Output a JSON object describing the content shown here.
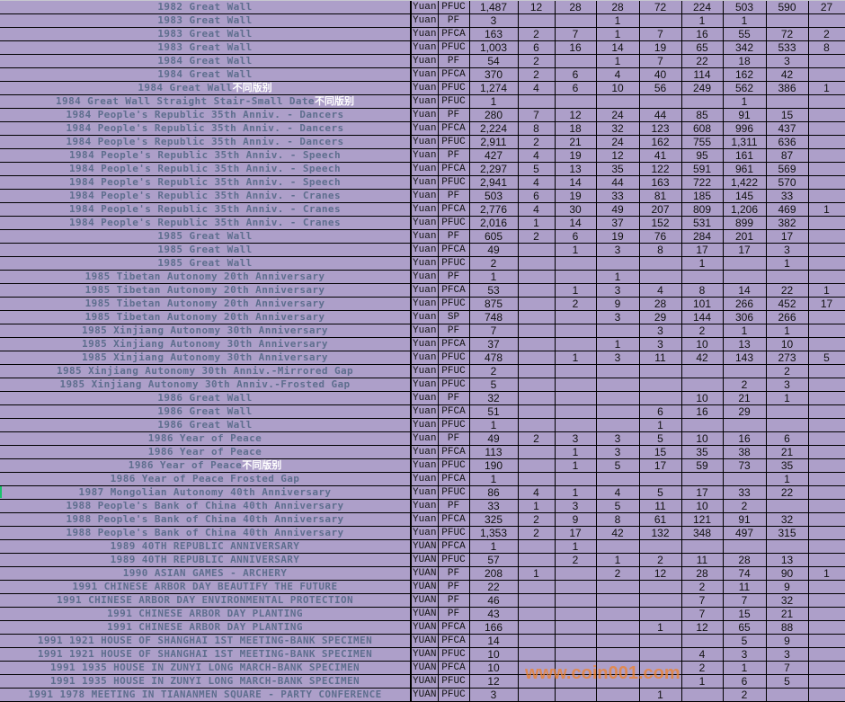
{
  "columns_count": 12,
  "rows": [
    {
      "desc": "1982 Great Wall",
      "note": "",
      "cur": "Yuan",
      "grade": "PFUC",
      "total": "1,487",
      "v": [
        "12",
        "28",
        "28",
        "72",
        "224",
        "503",
        "590",
        "27"
      ]
    },
    {
      "desc": "1983 Great Wall",
      "note": "",
      "cur": "Yuan",
      "grade": "PF",
      "total": "3",
      "v": [
        "",
        "",
        "1",
        "",
        "1",
        "1",
        "",
        ""
      ]
    },
    {
      "desc": "1983 Great Wall",
      "note": "",
      "cur": "Yuan",
      "grade": "PFCA",
      "total": "163",
      "v": [
        "2",
        "7",
        "1",
        "7",
        "16",
        "55",
        "72",
        "2"
      ]
    },
    {
      "desc": "1983 Great Wall",
      "note": "",
      "cur": "Yuan",
      "grade": "PFUC",
      "total": "1,003",
      "v": [
        "6",
        "16",
        "14",
        "19",
        "65",
        "342",
        "533",
        "8"
      ]
    },
    {
      "desc": "1984 Great Wall",
      "note": "",
      "cur": "Yuan",
      "grade": "PF",
      "total": "54",
      "v": [
        "2",
        "",
        "1",
        "7",
        "22",
        "18",
        "3",
        ""
      ]
    },
    {
      "desc": "1984 Great Wall",
      "note": "",
      "cur": "Yuan",
      "grade": "PFCA",
      "total": "370",
      "v": [
        "2",
        "6",
        "4",
        "40",
        "114",
        "162",
        "42",
        ""
      ]
    },
    {
      "desc": "1984 Great Wall",
      "note": "不同版别",
      "cur": "Yuan",
      "grade": "PFUC",
      "total": "1,274",
      "v": [
        "4",
        "6",
        "10",
        "56",
        "249",
        "562",
        "386",
        "1"
      ]
    },
    {
      "desc": "1984 Great Wall Straight Stair-Small Date",
      "note": "不同版别",
      "cur": "Yuan",
      "grade": "PFUC",
      "total": "1",
      "v": [
        "",
        "",
        "",
        "",
        "",
        "1",
        "",
        ""
      ]
    },
    {
      "desc": "1984 People's Republic 35th Anniv. - Dancers",
      "note": "",
      "cur": "Yuan",
      "grade": "PF",
      "total": "280",
      "v": [
        "7",
        "12",
        "24",
        "44",
        "85",
        "91",
        "15",
        ""
      ]
    },
    {
      "desc": "1984 People's Republic 35th Anniv. - Dancers",
      "note": "",
      "cur": "Yuan",
      "grade": "PFCA",
      "total": "2,224",
      "v": [
        "8",
        "18",
        "32",
        "123",
        "608",
        "996",
        "437",
        ""
      ]
    },
    {
      "desc": "1984 People's Republic 35th Anniv. - Dancers",
      "note": "",
      "cur": "Yuan",
      "grade": "PFUC",
      "total": "2,911",
      "v": [
        "2",
        "21",
        "24",
        "162",
        "755",
        "1,311",
        "636",
        ""
      ]
    },
    {
      "desc": "1984 People's Republic 35th Anniv. - Speech",
      "note": "",
      "cur": "Yuan",
      "grade": "PF",
      "total": "427",
      "v": [
        "4",
        "19",
        "12",
        "41",
        "95",
        "161",
        "87",
        ""
      ]
    },
    {
      "desc": "1984 People's Republic 35th Anniv. - Speech",
      "note": "",
      "cur": "Yuan",
      "grade": "PFCA",
      "total": "2,297",
      "v": [
        "5",
        "13",
        "35",
        "122",
        "591",
        "961",
        "569",
        ""
      ]
    },
    {
      "desc": "1984 People's Republic 35th Anniv. - Speech",
      "note": "",
      "cur": "Yuan",
      "grade": "PFUC",
      "total": "2,941",
      "v": [
        "4",
        "14",
        "44",
        "163",
        "722",
        "1,422",
        "570",
        ""
      ]
    },
    {
      "desc": "1984 People's Republic 35th Anniv. - Cranes",
      "note": "",
      "cur": "Yuan",
      "grade": "PF",
      "total": "503",
      "v": [
        "6",
        "19",
        "33",
        "81",
        "185",
        "145",
        "33",
        ""
      ]
    },
    {
      "desc": "1984 People's Republic 35th Anniv. - Cranes",
      "note": "",
      "cur": "Yuan",
      "grade": "PFCA",
      "total": "2,776",
      "v": [
        "4",
        "30",
        "49",
        "207",
        "809",
        "1,206",
        "469",
        "1"
      ]
    },
    {
      "desc": "1984 People's Republic 35th Anniv. - Cranes",
      "note": "",
      "cur": "Yuan",
      "grade": "PFUC",
      "total": "2,016",
      "v": [
        "1",
        "14",
        "37",
        "152",
        "531",
        "899",
        "382",
        ""
      ]
    },
    {
      "desc": "1985 Great Wall",
      "note": "",
      "cur": "Yuan",
      "grade": "PF",
      "total": "605",
      "v": [
        "2",
        "6",
        "19",
        "76",
        "284",
        "201",
        "17",
        ""
      ]
    },
    {
      "desc": "1985 Great Wall",
      "note": "",
      "cur": "Yuan",
      "grade": "PFCA",
      "total": "49",
      "v": [
        "",
        "1",
        "3",
        "8",
        "17",
        "17",
        "3",
        ""
      ]
    },
    {
      "desc": "1985 Great Wall",
      "note": "",
      "cur": "Yuan",
      "grade": "PFUC",
      "total": "2",
      "v": [
        "",
        "",
        "",
        "",
        "1",
        "",
        "1",
        ""
      ]
    },
    {
      "desc": "1985 Tibetan Autonomy 20th Anniversary",
      "note": "",
      "cur": "Yuan",
      "grade": "PF",
      "total": "1",
      "v": [
        "",
        "",
        "1",
        "",
        "",
        "",
        "",
        ""
      ]
    },
    {
      "desc": "1985 Tibetan Autonomy 20th Anniversary",
      "note": "",
      "cur": "Yuan",
      "grade": "PFCA",
      "total": "53",
      "v": [
        "",
        "1",
        "3",
        "4",
        "8",
        "14",
        "22",
        "1"
      ]
    },
    {
      "desc": "1985 Tibetan Autonomy 20th Anniversary",
      "note": "",
      "cur": "Yuan",
      "grade": "PFUC",
      "total": "875",
      "v": [
        "",
        "2",
        "9",
        "28",
        "101",
        "266",
        "452",
        "17"
      ]
    },
    {
      "desc": "1985 Tibetan Autonomy 20th Anniversary",
      "note": "",
      "cur": "Yuan",
      "grade": "SP",
      "total": "748",
      "v": [
        "",
        "",
        "3",
        "29",
        "144",
        "306",
        "266",
        ""
      ]
    },
    {
      "desc": "1985 Xinjiang Autonomy 30th Anniversary",
      "note": "",
      "cur": "Yuan",
      "grade": "PF",
      "total": "7",
      "v": [
        "",
        "",
        "",
        "3",
        "2",
        "1",
        "1",
        ""
      ]
    },
    {
      "desc": "1985 Xinjiang Autonomy 30th Anniversary",
      "note": "",
      "cur": "Yuan",
      "grade": "PFCA",
      "total": "37",
      "v": [
        "",
        "",
        "1",
        "3",
        "10",
        "13",
        "10",
        ""
      ]
    },
    {
      "desc": "1985 Xinjiang Autonomy 30th Anniversary",
      "note": "",
      "cur": "Yuan",
      "grade": "PFUC",
      "total": "478",
      "v": [
        "",
        "1",
        "3",
        "11",
        "42",
        "143",
        "273",
        "5"
      ]
    },
    {
      "desc": "1985 Xinjiang Autonomy 30th Anniv.-Mirrored Gap",
      "note": "",
      "cur": "Yuan",
      "grade": "PFUC",
      "total": "2",
      "v": [
        "",
        "",
        "",
        "",
        "",
        "",
        "2",
        ""
      ]
    },
    {
      "desc": "1985 Xinjiang Autonomy 30th Anniv.-Frosted Gap",
      "note": "",
      "cur": "Yuan",
      "grade": "PFUC",
      "total": "5",
      "v": [
        "",
        "",
        "",
        "",
        "",
        "2",
        "3",
        ""
      ]
    },
    {
      "desc": "1986 Great Wall",
      "note": "",
      "cur": "Yuan",
      "grade": "PF",
      "total": "32",
      "v": [
        "",
        "",
        "",
        "",
        "10",
        "21",
        "1",
        ""
      ]
    },
    {
      "desc": "1986 Great Wall",
      "note": "",
      "cur": "Yuan",
      "grade": "PFCA",
      "total": "51",
      "v": [
        "",
        "",
        "",
        "6",
        "16",
        "29",
        "",
        ""
      ]
    },
    {
      "desc": "1986 Great Wall",
      "note": "",
      "cur": "Yuan",
      "grade": "PFUC",
      "total": "1",
      "v": [
        "",
        "",
        "",
        "1",
        "",
        "",
        "",
        ""
      ]
    },
    {
      "desc": "1986 Year of Peace",
      "note": "",
      "cur": "Yuan",
      "grade": "PF",
      "total": "49",
      "v": [
        "2",
        "3",
        "3",
        "5",
        "10",
        "16",
        "6",
        ""
      ]
    },
    {
      "desc": "1986 Year of Peace",
      "note": "",
      "cur": "Yuan",
      "grade": "PFCA",
      "total": "113",
      "v": [
        "",
        "1",
        "3",
        "15",
        "35",
        "38",
        "21",
        ""
      ]
    },
    {
      "desc": "1986 Year of Peace",
      "note": "不同版别",
      "cur": "Yuan",
      "grade": "PFUC",
      "total": "190",
      "v": [
        "",
        "1",
        "5",
        "17",
        "59",
        "73",
        "35",
        ""
      ]
    },
    {
      "desc": "1986 Year of Peace Frosted Gap",
      "note": "",
      "cur": "Yuan",
      "grade": "PFCA",
      "total": "1",
      "v": [
        "",
        "",
        "",
        "",
        "",
        "",
        "1",
        ""
      ]
    },
    {
      "desc": "1987 Mongolian Autonomy 40th Anniversary",
      "note": "",
      "cur": "Yuan",
      "grade": "PFUC",
      "total": "86",
      "v": [
        "4",
        "1",
        "4",
        "5",
        "17",
        "33",
        "22",
        ""
      ]
    },
    {
      "desc": "1988 People's Bank of China 40th Anniversary",
      "note": "",
      "cur": "Yuan",
      "grade": "PF",
      "total": "33",
      "v": [
        "1",
        "3",
        "5",
        "11",
        "10",
        "2",
        "",
        ""
      ]
    },
    {
      "desc": "1988 People's Bank of China 40th Anniversary",
      "note": "",
      "cur": "Yuan",
      "grade": "PFCA",
      "total": "325",
      "v": [
        "2",
        "9",
        "8",
        "61",
        "121",
        "91",
        "32",
        ""
      ]
    },
    {
      "desc": "1988 People's Bank of China 40th Anniversary",
      "note": "",
      "cur": "Yuan",
      "grade": "PFUC",
      "total": "1,353",
      "v": [
        "2",
        "17",
        "42",
        "132",
        "348",
        "497",
        "315",
        ""
      ]
    },
    {
      "desc": "1989 40TH REPUBLIC ANNIVERSARY",
      "note": "",
      "cur": "YUAN",
      "grade": "PFCA",
      "total": "1",
      "v": [
        "",
        "1",
        "",
        "",
        "",
        "",
        "",
        ""
      ]
    },
    {
      "desc": "1989 40TH REPUBLIC ANNIVERSARY",
      "note": "",
      "cur": "YUAN",
      "grade": "PFUC",
      "total": "57",
      "v": [
        "",
        "2",
        "1",
        "2",
        "11",
        "28",
        "13",
        ""
      ]
    },
    {
      "desc": "1990 ASIAN GAMES - ARCHERY",
      "note": "",
      "cur": "YUAN",
      "grade": "PF",
      "total": "208",
      "v": [
        "1",
        "",
        "2",
        "12",
        "28",
        "74",
        "90",
        "1"
      ]
    },
    {
      "desc": "1991 CHINESE ARBOR DAY BEAUTIFY THE FUTURE",
      "note": "",
      "cur": "YUAN",
      "grade": "PF",
      "total": "22",
      "v": [
        "",
        "",
        "",
        "",
        "2",
        "11",
        "9",
        ""
      ]
    },
    {
      "desc": "1991 CHINESE ARBOR DAY ENVIRONMENTAL PROTECTION",
      "note": "",
      "cur": "YUAN",
      "grade": "PF",
      "total": "46",
      "v": [
        "",
        "",
        "",
        "",
        "7",
        "7",
        "32",
        ""
      ]
    },
    {
      "desc": "1991 CHINESE ARBOR DAY PLANTING",
      "note": "",
      "cur": "YUAN",
      "grade": "PF",
      "total": "43",
      "v": [
        "",
        "",
        "",
        "",
        "7",
        "15",
        "21",
        ""
      ]
    },
    {
      "desc": "1991 CHINESE ARBOR DAY PLANTING",
      "note": "",
      "cur": "YUAN",
      "grade": "PFCA",
      "total": "166",
      "v": [
        "",
        "",
        "",
        "1",
        "12",
        "65",
        "88",
        ""
      ]
    },
    {
      "desc": "1991 1921 HOUSE OF SHANGHAI 1ST MEETING-BANK SPECIMEN",
      "note": "",
      "cur": "YUAN",
      "grade": "PFCA",
      "total": "14",
      "v": [
        "",
        "",
        "",
        "",
        "",
        "5",
        "9",
        ""
      ]
    },
    {
      "desc": "1991 1921 HOUSE OF SHANGHAI 1ST MEETING-BANK SPECIMEN",
      "note": "",
      "cur": "YUAN",
      "grade": "PFUC",
      "total": "10",
      "v": [
        "",
        "",
        "",
        "",
        "4",
        "3",
        "3",
        ""
      ]
    },
    {
      "desc": "1991 1935 HOUSE IN ZUNYI LONG MARCH-BANK SPECIMEN",
      "note": "",
      "cur": "YUAN",
      "grade": "PFCA",
      "total": "10",
      "v": [
        "",
        "",
        "",
        "",
        "2",
        "1",
        "7",
        ""
      ]
    },
    {
      "desc": "1991 1935 HOUSE IN ZUNYI LONG MARCH-BANK SPECIMEN",
      "note": "",
      "cur": "YUAN",
      "grade": "PFUC",
      "total": "12",
      "v": [
        "",
        "",
        "",
        "",
        "1",
        "6",
        "5",
        ""
      ]
    },
    {
      "desc": "1991 1978 MEETING IN TIANANMEN SQUARE - PARTY CONFERENCE",
      "note": "",
      "cur": "YUAN",
      "grade": "PFUC",
      "total": "3",
      "v": [
        "",
        "",
        "",
        "1",
        "",
        "2",
        "",
        ""
      ]
    }
  ],
  "watermark": "www.coin001.com",
  "colors": {
    "background": "#ad9fc9",
    "description_text": "#5e6e8e",
    "note_text": "#ffffff",
    "grid": "#000000",
    "watermark": "#f08228"
  }
}
